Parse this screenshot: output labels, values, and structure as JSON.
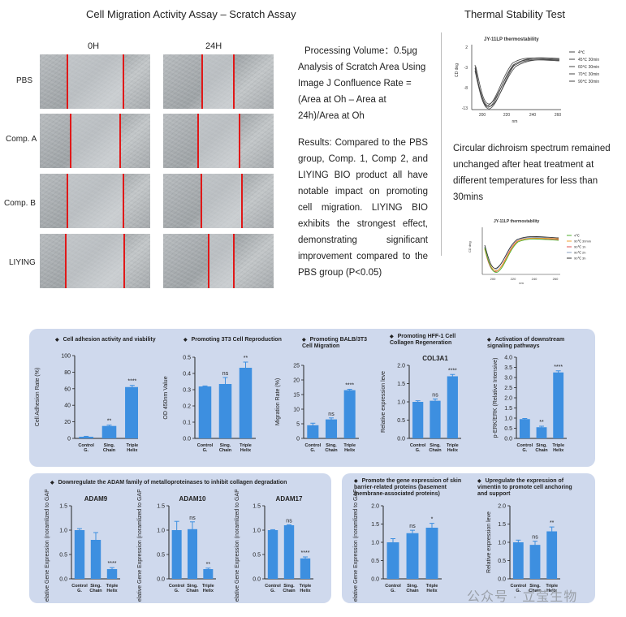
{
  "scratch": {
    "title": "Cell Migration Activity Assay – Scratch Assay",
    "col_0h": "0H",
    "col_24h": "24H",
    "rows": [
      "PBS",
      "Comp. A",
      "Comp. B",
      "LIYING"
    ],
    "processing": "Processing Volume：0.5μg",
    "analysis": "Analysis of Scratch Area Using Image J Confluence Rate = (Area at Oh – Area at 24h)/Area at Oh",
    "results": "Results: Compared to the PBS group, Comp. 1, Comp 2, and LIYING BIO product all have notable impact on promoting cell migration. LIYING BIO exhibits the strongest effect, demonstrating significant improvement compared to the PBS group (P<0.05)"
  },
  "thermal": {
    "title": "Thermal Stability Test",
    "caption": "Circular dichroism spectrum remained unchanged after heat treatment at different temperatures for less than 30mins",
    "cd1": {
      "title": "JY-11LP thermostability",
      "ylabel": "CD deg",
      "xlabel": "nm",
      "xticks": [
        "200",
        "220",
        "240",
        "260"
      ],
      "yticks": [
        "2",
        "-3",
        "-8",
        "-13"
      ],
      "legend": [
        "4℃",
        "45℃  30min",
        "60℃  30min",
        "70℃  30min",
        "90℃  30min"
      ]
    },
    "cd2": {
      "title": "JY-11LP thermostability",
      "ylabel": "CD deg",
      "xlabel": "nm",
      "xticks": [
        "200",
        "220",
        "240",
        "260"
      ],
      "legend": [
        "4℃",
        "90℃  30min",
        "90℃  1h",
        "90℃  2h",
        "90℃  3h"
      ],
      "legend_colors": [
        "#4caf2a",
        "#f0a030",
        "#e05050",
        "#8aa0c0",
        "#333333"
      ]
    }
  },
  "panels": {
    "p1_titles": [
      "Cell adhesion activity and viability",
      "Promoting 3T3 Cell Reproduction",
      "Promoting BALB/3T3 Cell Migration",
      "Promoting HFF-1 Cell Collagen Regeneration",
      "Activation of downstream signaling pathways"
    ],
    "p2_title": "Downregulate the ADAM family of metalloproteinases to inhibit collagen degradation",
    "p3_titles": [
      "Promote the gene expression of skin barrier-related proteins (basement membrane-associated proteins)",
      "Upregulate the expression of vimentin to promote cell anchoring and support"
    ]
  },
  "watermark": "公众号 · 立莹生物",
  "colors": {
    "bar": "#3d8fe0",
    "error": "#3d8fe0",
    "panel": "#cfd9ed",
    "scratch_line": "#e01818"
  },
  "chart_data": [
    {
      "type": "bar",
      "title": "",
      "categories": [
        "Control G.",
        "Sing. Chain",
        "Triple Helix"
      ],
      "values": [
        2,
        15,
        62
      ],
      "errors": [
        0.5,
        1,
        2
      ],
      "annotations": [
        "",
        "**",
        "****"
      ],
      "ylabel": "Cell Adhesion Rate (%)",
      "ylim": [
        0,
        100
      ],
      "yticks": [
        0,
        20,
        40,
        60,
        80,
        100
      ],
      "ytick_labels": [
        "0",
        "20",
        "40",
        "60",
        "80",
        "100"
      ]
    },
    {
      "type": "bar",
      "title": "",
      "categories": [
        "Control G.",
        "Sing. Chain",
        "Triple Helix"
      ],
      "values": [
        0.32,
        0.335,
        0.435
      ],
      "errors": [
        0.003,
        0.04,
        0.035
      ],
      "annotations": [
        "",
        "ns",
        "**"
      ],
      "ylabel": "OD 450nm Value",
      "ylim": [
        0,
        0.5
      ],
      "yticks": [
        0,
        0.1,
        0.2,
        0.3,
        0.4,
        0.5
      ],
      "ytick_labels": [
        "0.0",
        "0.1",
        "0.2",
        "0.3",
        "0.4",
        "0.5"
      ]
    },
    {
      "type": "bar",
      "title": "",
      "categories": [
        "Control G.",
        "Sing. Chain",
        "Triple Helix"
      ],
      "values": [
        4.5,
        6.5,
        16.5
      ],
      "errors": [
        0.7,
        0.5,
        0.3
      ],
      "annotations": [
        "",
        "ns",
        "****"
      ],
      "ylabel": "Migration Rate (%)",
      "ylim": [
        0,
        25
      ],
      "yticks": [
        0,
        5,
        10,
        15,
        20,
        25
      ],
      "ytick_labels": [
        "0",
        "5",
        "10",
        "15",
        "20",
        "25"
      ]
    },
    {
      "type": "bar",
      "title": "COL3A1",
      "categories": [
        "Control G.",
        "Sing. Chain",
        "Triple Helix"
      ],
      "values": [
        1.0,
        1.03,
        1.7
      ],
      "errors": [
        0.03,
        0.05,
        0.05
      ],
      "annotations": [
        "",
        "ns",
        "****"
      ],
      "ylabel": "Relative expression leve",
      "ylim": [
        0,
        2.0
      ],
      "yticks": [
        0,
        0.5,
        1.0,
        1.5,
        2.0
      ],
      "ytick_labels": [
        "0.0",
        "0.5",
        "1.0",
        "1.5",
        "2.0"
      ]
    },
    {
      "type": "bar",
      "title": "",
      "categories": [
        "Control G.",
        "Sing. Chain",
        "Triple Helix"
      ],
      "values": [
        0.95,
        0.55,
        3.25
      ],
      "errors": [
        0.03,
        0.05,
        0.08
      ],
      "annotations": [
        "",
        "**",
        "****"
      ],
      "ylabel": "p-ERK/ERK (Relative Intensive)",
      "ylim": [
        0,
        4
      ],
      "yticks": [
        0,
        0.5,
        1.0,
        1.5,
        2.0,
        2.5,
        3.0,
        3.5,
        4.0
      ],
      "ytick_labels": [
        "0.0",
        "0.5",
        "1.0",
        "1.5",
        "2.0",
        "2.5",
        "3.0",
        "3.5",
        "4.0"
      ]
    },
    {
      "type": "bar",
      "title": "ADAM9",
      "categories": [
        "Control G.",
        "Sing. Chain",
        "Triple Helix"
      ],
      "values": [
        1.0,
        0.8,
        0.2
      ],
      "errors": [
        0.03,
        0.15,
        0.03
      ],
      "annotations": [
        "",
        "",
        "****"
      ],
      "ylabel": "Relative Gene Expression (noramlized to GAPDH)",
      "ylim": [
        0,
        1.5
      ],
      "yticks": [
        0,
        0.5,
        1.0,
        1.5
      ],
      "ytick_labels": [
        "0.0",
        "0.5",
        "1.0",
        "1.5"
      ]
    },
    {
      "type": "bar",
      "title": "ADAM10",
      "categories": [
        "Control G.",
        "Sing. Chain",
        "Triple Helix"
      ],
      "values": [
        1.0,
        1.02,
        0.2
      ],
      "errors": [
        0.18,
        0.15,
        0.02
      ],
      "annotations": [
        "",
        "ns",
        "**"
      ],
      "ylabel": "Relative Gene Expression (noramlized to GAPDH)",
      "ylim": [
        0,
        1.5
      ],
      "yticks": [
        0,
        0.5,
        1.0,
        1.5
      ],
      "ytick_labels": [
        "0.0",
        "0.5",
        "1.0",
        "1.5"
      ]
    },
    {
      "type": "bar",
      "title": "ADAM17",
      "categories": [
        "Control G.",
        "Sing. Chain",
        "Triple Helix"
      ],
      "values": [
        1.0,
        1.1,
        0.42
      ],
      "errors": [
        0.01,
        0.01,
        0.03
      ],
      "annotations": [
        "",
        "ns",
        "****"
      ],
      "ylabel": "Relative Gene Expression (noramlized to GAPDH)",
      "ylim": [
        0,
        1.5
      ],
      "yticks": [
        0,
        0.5,
        1.0,
        1.5
      ],
      "ytick_labels": [
        "0.0",
        "0.5",
        "1.0",
        "1.5"
      ]
    },
    {
      "type": "bar",
      "title": "",
      "categories": [
        "Control G.",
        "Sing. Chain",
        "Triple Helix"
      ],
      "values": [
        1.0,
        1.25,
        1.4
      ],
      "errors": [
        0.1,
        0.08,
        0.12
      ],
      "annotations": [
        "",
        "ns",
        "*"
      ],
      "ylabel": "Relative Gene Expression (noramlized to GAPDH)",
      "ylim": [
        0,
        2.0
      ],
      "yticks": [
        0,
        0.5,
        1.0,
        1.5,
        2.0
      ],
      "ytick_labels": [
        "0.0",
        "0.5",
        "1.0",
        "1.5",
        "2.0"
      ]
    },
    {
      "type": "bar",
      "title": "",
      "categories": [
        "Control G.",
        "Sing. Chain",
        "Triple Helix"
      ],
      "values": [
        1.0,
        0.93,
        1.3
      ],
      "errors": [
        0.06,
        0.1,
        0.12
      ],
      "annotations": [
        "",
        "ns",
        "**"
      ],
      "ylabel": "Relative expression leve",
      "ylim": [
        0,
        2.0
      ],
      "yticks": [
        0,
        0.5,
        1.0,
        1.5,
        2.0
      ],
      "ytick_labels": [
        "0.0",
        "0.5",
        "1.0",
        "1.5",
        "2.0"
      ]
    }
  ]
}
